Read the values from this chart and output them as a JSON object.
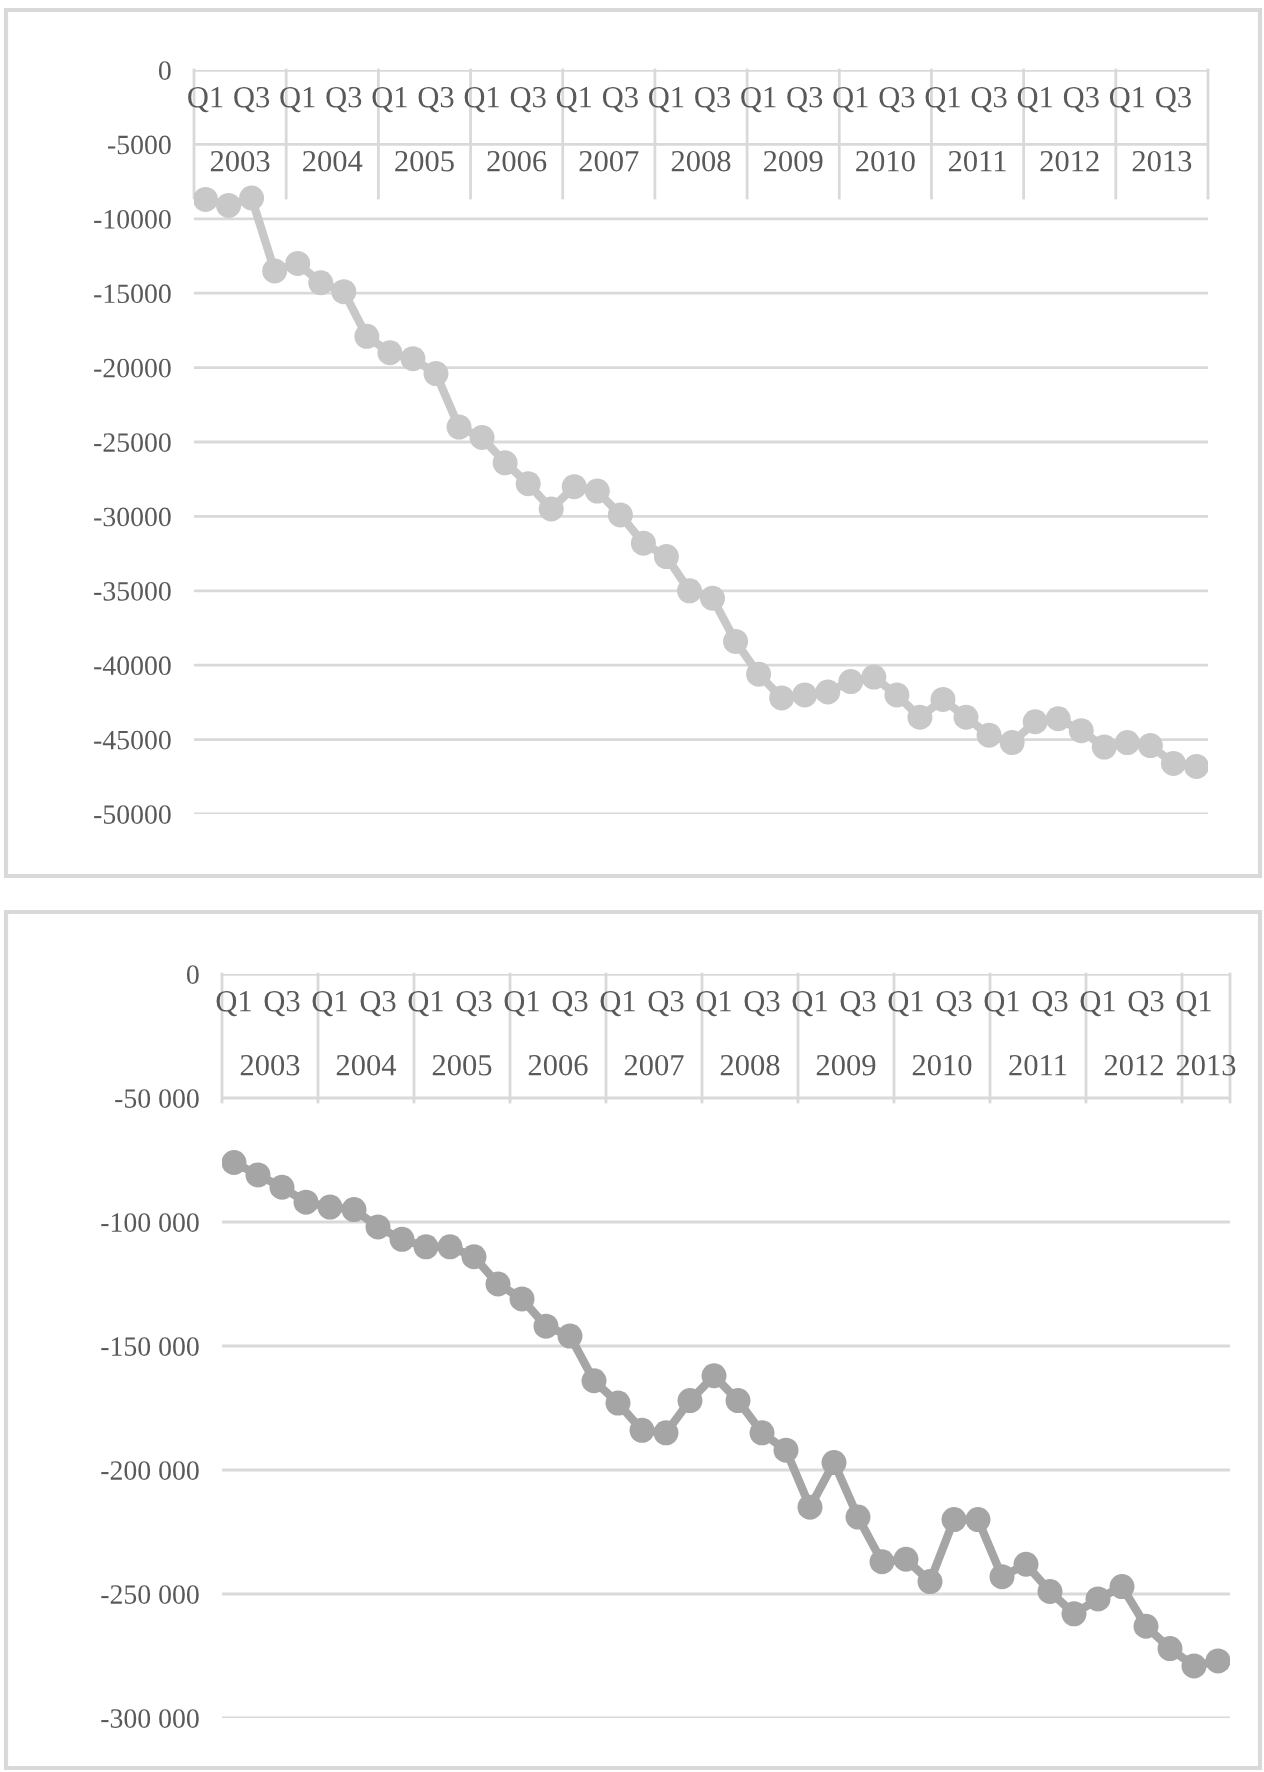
{
  "chart_data": [
    {
      "type": "line",
      "categories": [
        "Q1",
        null,
        "Q3",
        null,
        "Q1",
        null,
        "Q3",
        null,
        "Q1",
        null,
        "Q3",
        null,
        "Q1",
        null,
        "Q3",
        null,
        "Q1",
        null,
        "Q3",
        null,
        "Q1",
        null,
        "Q3",
        null,
        "Q1",
        null,
        "Q3",
        null,
        "Q1",
        null,
        "Q3",
        null,
        "Q1",
        null,
        "Q3",
        null,
        "Q1",
        null,
        "Q3",
        null,
        "Q1",
        null,
        "Q3",
        null
      ],
      "series": [
        {
          "color": "#c8c8c8",
          "values": [
            -8700,
            -9100,
            -8600,
            -13500,
            -13000,
            -14300,
            -14900,
            -17900,
            -19000,
            -19400,
            -20400,
            -24000,
            -24700,
            -26400,
            -27800,
            -29500,
            -28000,
            -28300,
            -29900,
            -31800,
            -32700,
            -35000,
            -35500,
            -38400,
            -40600,
            -42200,
            -42000,
            -41800,
            -41100,
            -40800,
            -42000,
            -43500,
            -42300,
            -43500,
            -44700,
            -45200,
            -43800,
            -43600,
            -44400,
            -45500,
            -45200,
            -45400,
            -46600,
            -46800
          ]
        }
      ],
      "annotations": [
        "2003",
        "2004",
        "2005",
        "2006",
        "2007",
        "2008",
        "2009",
        "2010",
        "2011",
        "2012",
        "2013"
      ],
      "ylim": [
        -50000,
        0
      ],
      "yticks": [
        -50000,
        -45000,
        -40000,
        -35000,
        -30000,
        -25000,
        -20000,
        -15000,
        -10000,
        -5000,
        0
      ],
      "grid": "y",
      "marker": "circle",
      "line_style": "solid",
      "legend": false
    },
    {
      "type": "line",
      "categories": [
        "Q1",
        null,
        "Q3",
        null,
        "Q1",
        null,
        "Q3",
        null,
        "Q1",
        null,
        "Q3",
        null,
        "Q1",
        null,
        "Q3",
        null,
        "Q1",
        null,
        "Q3",
        null,
        "Q1",
        null,
        "Q3",
        null,
        "Q1",
        null,
        "Q3",
        null,
        "Q1",
        null,
        "Q3",
        null,
        "Q1",
        null,
        "Q3",
        null,
        "Q1",
        null,
        "Q3",
        null,
        "Q1",
        null
      ],
      "series": [
        {
          "color": "#a5a5a5",
          "values": [
            -76000,
            -81000,
            -86000,
            -92000,
            -94000,
            -95000,
            -102000,
            -107000,
            -110000,
            -110000,
            -114000,
            -125000,
            -131000,
            -142000,
            -146000,
            -164000,
            -173000,
            -184000,
            -185000,
            -172000,
            -162000,
            -172000,
            -185000,
            -192000,
            -215000,
            -197000,
            -219000,
            -237000,
            -236000,
            -245000,
            -220000,
            -220000,
            -243000,
            -238000,
            -249000,
            -258000,
            -252000,
            -247000,
            -263000,
            -272000,
            -279000,
            -277000
          ]
        }
      ],
      "annotations": [
        "2003",
        "2004",
        "2005",
        "2006",
        "2007",
        "2008",
        "2009",
        "2010",
        "2011",
        "2012",
        "2013"
      ],
      "ylim": [
        -300000,
        0
      ],
      "yticks": [
        {
          "value": -300000,
          "label": "-300 000"
        },
        {
          "value": -250000,
          "label": "-250 000"
        },
        {
          "value": -200000,
          "label": "-200 000"
        },
        {
          "value": -150000,
          "label": "-150 000"
        },
        {
          "value": -100000,
          "label": "-100 000"
        },
        {
          "value": -50000,
          "label": "-50 000"
        },
        0
      ],
      "grid": "y",
      "marker": "circle",
      "line_style": "solid",
      "legend": false
    }
  ]
}
